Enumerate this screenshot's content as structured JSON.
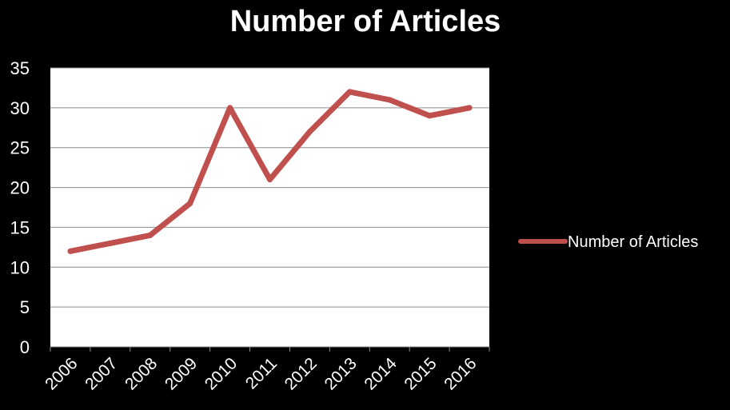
{
  "chart_data": {
    "type": "line",
    "title": "Number of Articles",
    "xlabel": "",
    "ylabel": "",
    "categories": [
      "2006",
      "2007",
      "2008",
      "2009",
      "2010",
      "2011",
      "2012",
      "2013",
      "2014",
      "2015",
      "2016"
    ],
    "series": [
      {
        "name": "Number of Articles",
        "values": [
          12,
          13,
          14,
          18,
          30,
          21,
          27,
          32,
          31,
          29,
          30
        ]
      }
    ],
    "ylim": [
      0,
      35
    ],
    "yticks": [
      0,
      5,
      10,
      15,
      20,
      25,
      30,
      35
    ],
    "grid": true,
    "legend": "right",
    "colors": {
      "line": "#c0504d",
      "plot_bg": "#ffffff",
      "page_bg": "#000000",
      "grid": "#8c8c8c",
      "text": "#ffffff"
    }
  }
}
